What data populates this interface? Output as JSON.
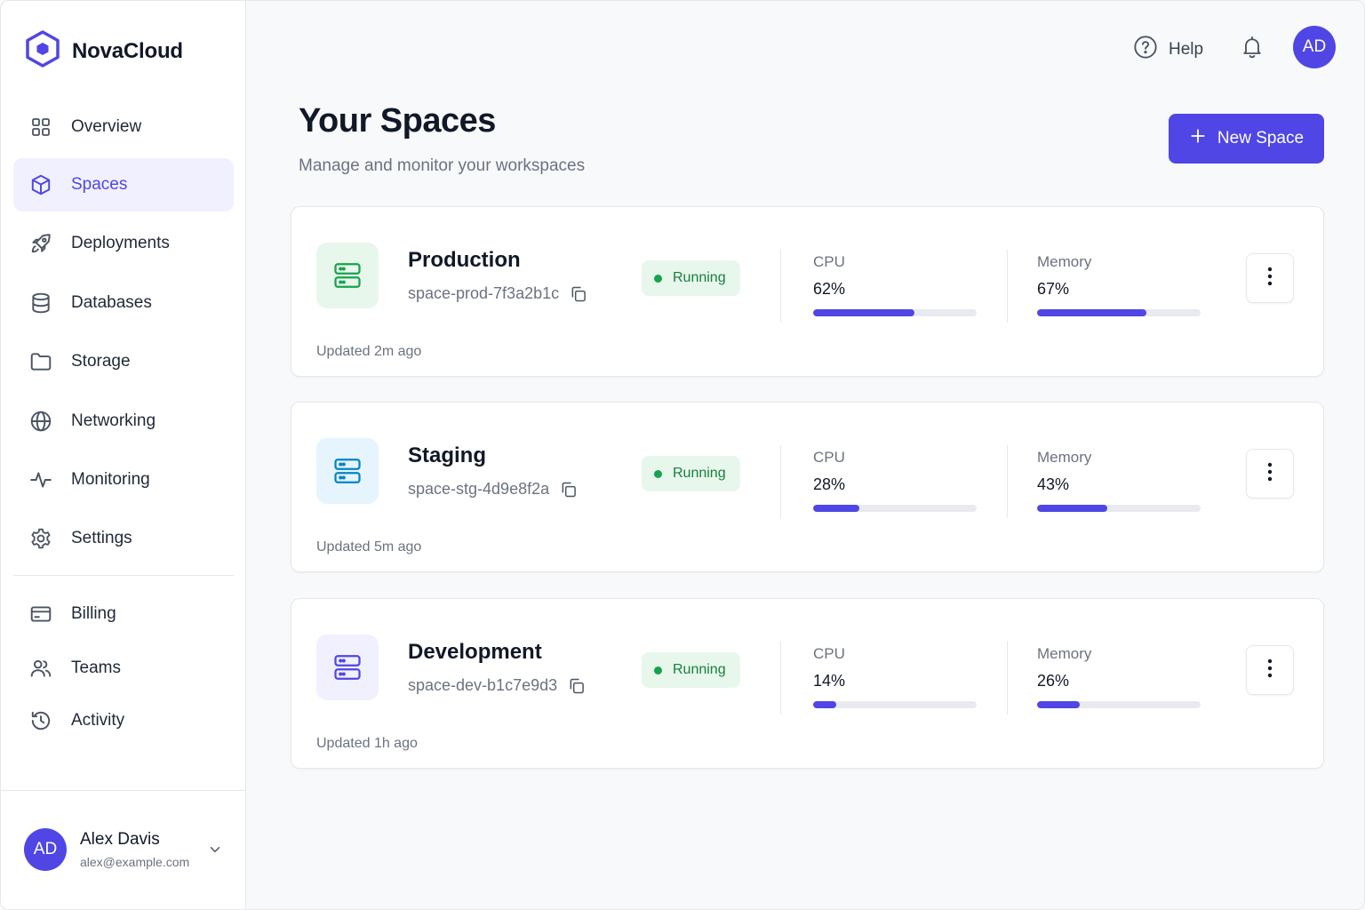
{
  "brand": {
    "name": "NovaCloud",
    "accent": "#4f46e5"
  },
  "sidebar": {
    "items": [
      {
        "label": "Overview",
        "icon": "grid-icon",
        "active": false
      },
      {
        "label": "Spaces",
        "icon": "cube-icon",
        "active": true
      },
      {
        "label": "Deployments",
        "icon": "rocket-icon",
        "active": false
      },
      {
        "label": "Databases",
        "icon": "database-icon",
        "active": false
      },
      {
        "label": "Storage",
        "icon": "folder-icon",
        "active": false
      },
      {
        "label": "Networking",
        "icon": "globe-icon",
        "active": false
      },
      {
        "label": "Monitoring",
        "icon": "activity-icon",
        "active": false
      },
      {
        "label": "Settings",
        "icon": "gear-icon",
        "active": false
      },
      {
        "label": "Billing",
        "icon": "credit-card-icon",
        "active": false
      },
      {
        "label": "Teams",
        "icon": "users-icon",
        "active": false
      },
      {
        "label": "Activity",
        "icon": "history-icon",
        "active": false
      }
    ]
  },
  "user": {
    "initials": "AD",
    "name": "Alex Davis",
    "email": "alex@example.com"
  },
  "header": {
    "help_label": "Help",
    "avatar_initials": "AD"
  },
  "page": {
    "title": "Your Spaces",
    "subtitle": "Manage and monitor your workspaces",
    "new_button_label": "New Space"
  },
  "spaces": [
    {
      "name": "Production",
      "id": "space-prod-7f3a2b1c",
      "status": "Running",
      "cpu_label": "CPU",
      "cpu": "62%",
      "cpu_fraction": 0.62,
      "memory_label": "Memory",
      "memory": "67%",
      "memory_fraction": 0.67,
      "updated": "Updated 2m ago",
      "icon_color": "#16a34a",
      "icon_bg": "#e8f7ec"
    },
    {
      "name": "Staging",
      "id": "space-stg-4d9e8f2a",
      "status": "Running",
      "cpu_label": "CPU",
      "cpu": "28%",
      "cpu_fraction": 0.28,
      "memory_label": "Memory",
      "memory": "43%",
      "memory_fraction": 0.43,
      "updated": "Updated 5m ago",
      "icon_color": "#0284c7",
      "icon_bg": "#e6f4fd"
    },
    {
      "name": "Development",
      "id": "space-dev-b1c7e9d3",
      "status": "Running",
      "cpu_label": "CPU",
      "cpu": "14%",
      "cpu_fraction": 0.14,
      "memory_label": "Memory",
      "memory": "26%",
      "memory_fraction": 0.26,
      "updated": "Updated 1h ago",
      "icon_color": "#4f46e5",
      "icon_bg": "#f1f0fe"
    }
  ]
}
